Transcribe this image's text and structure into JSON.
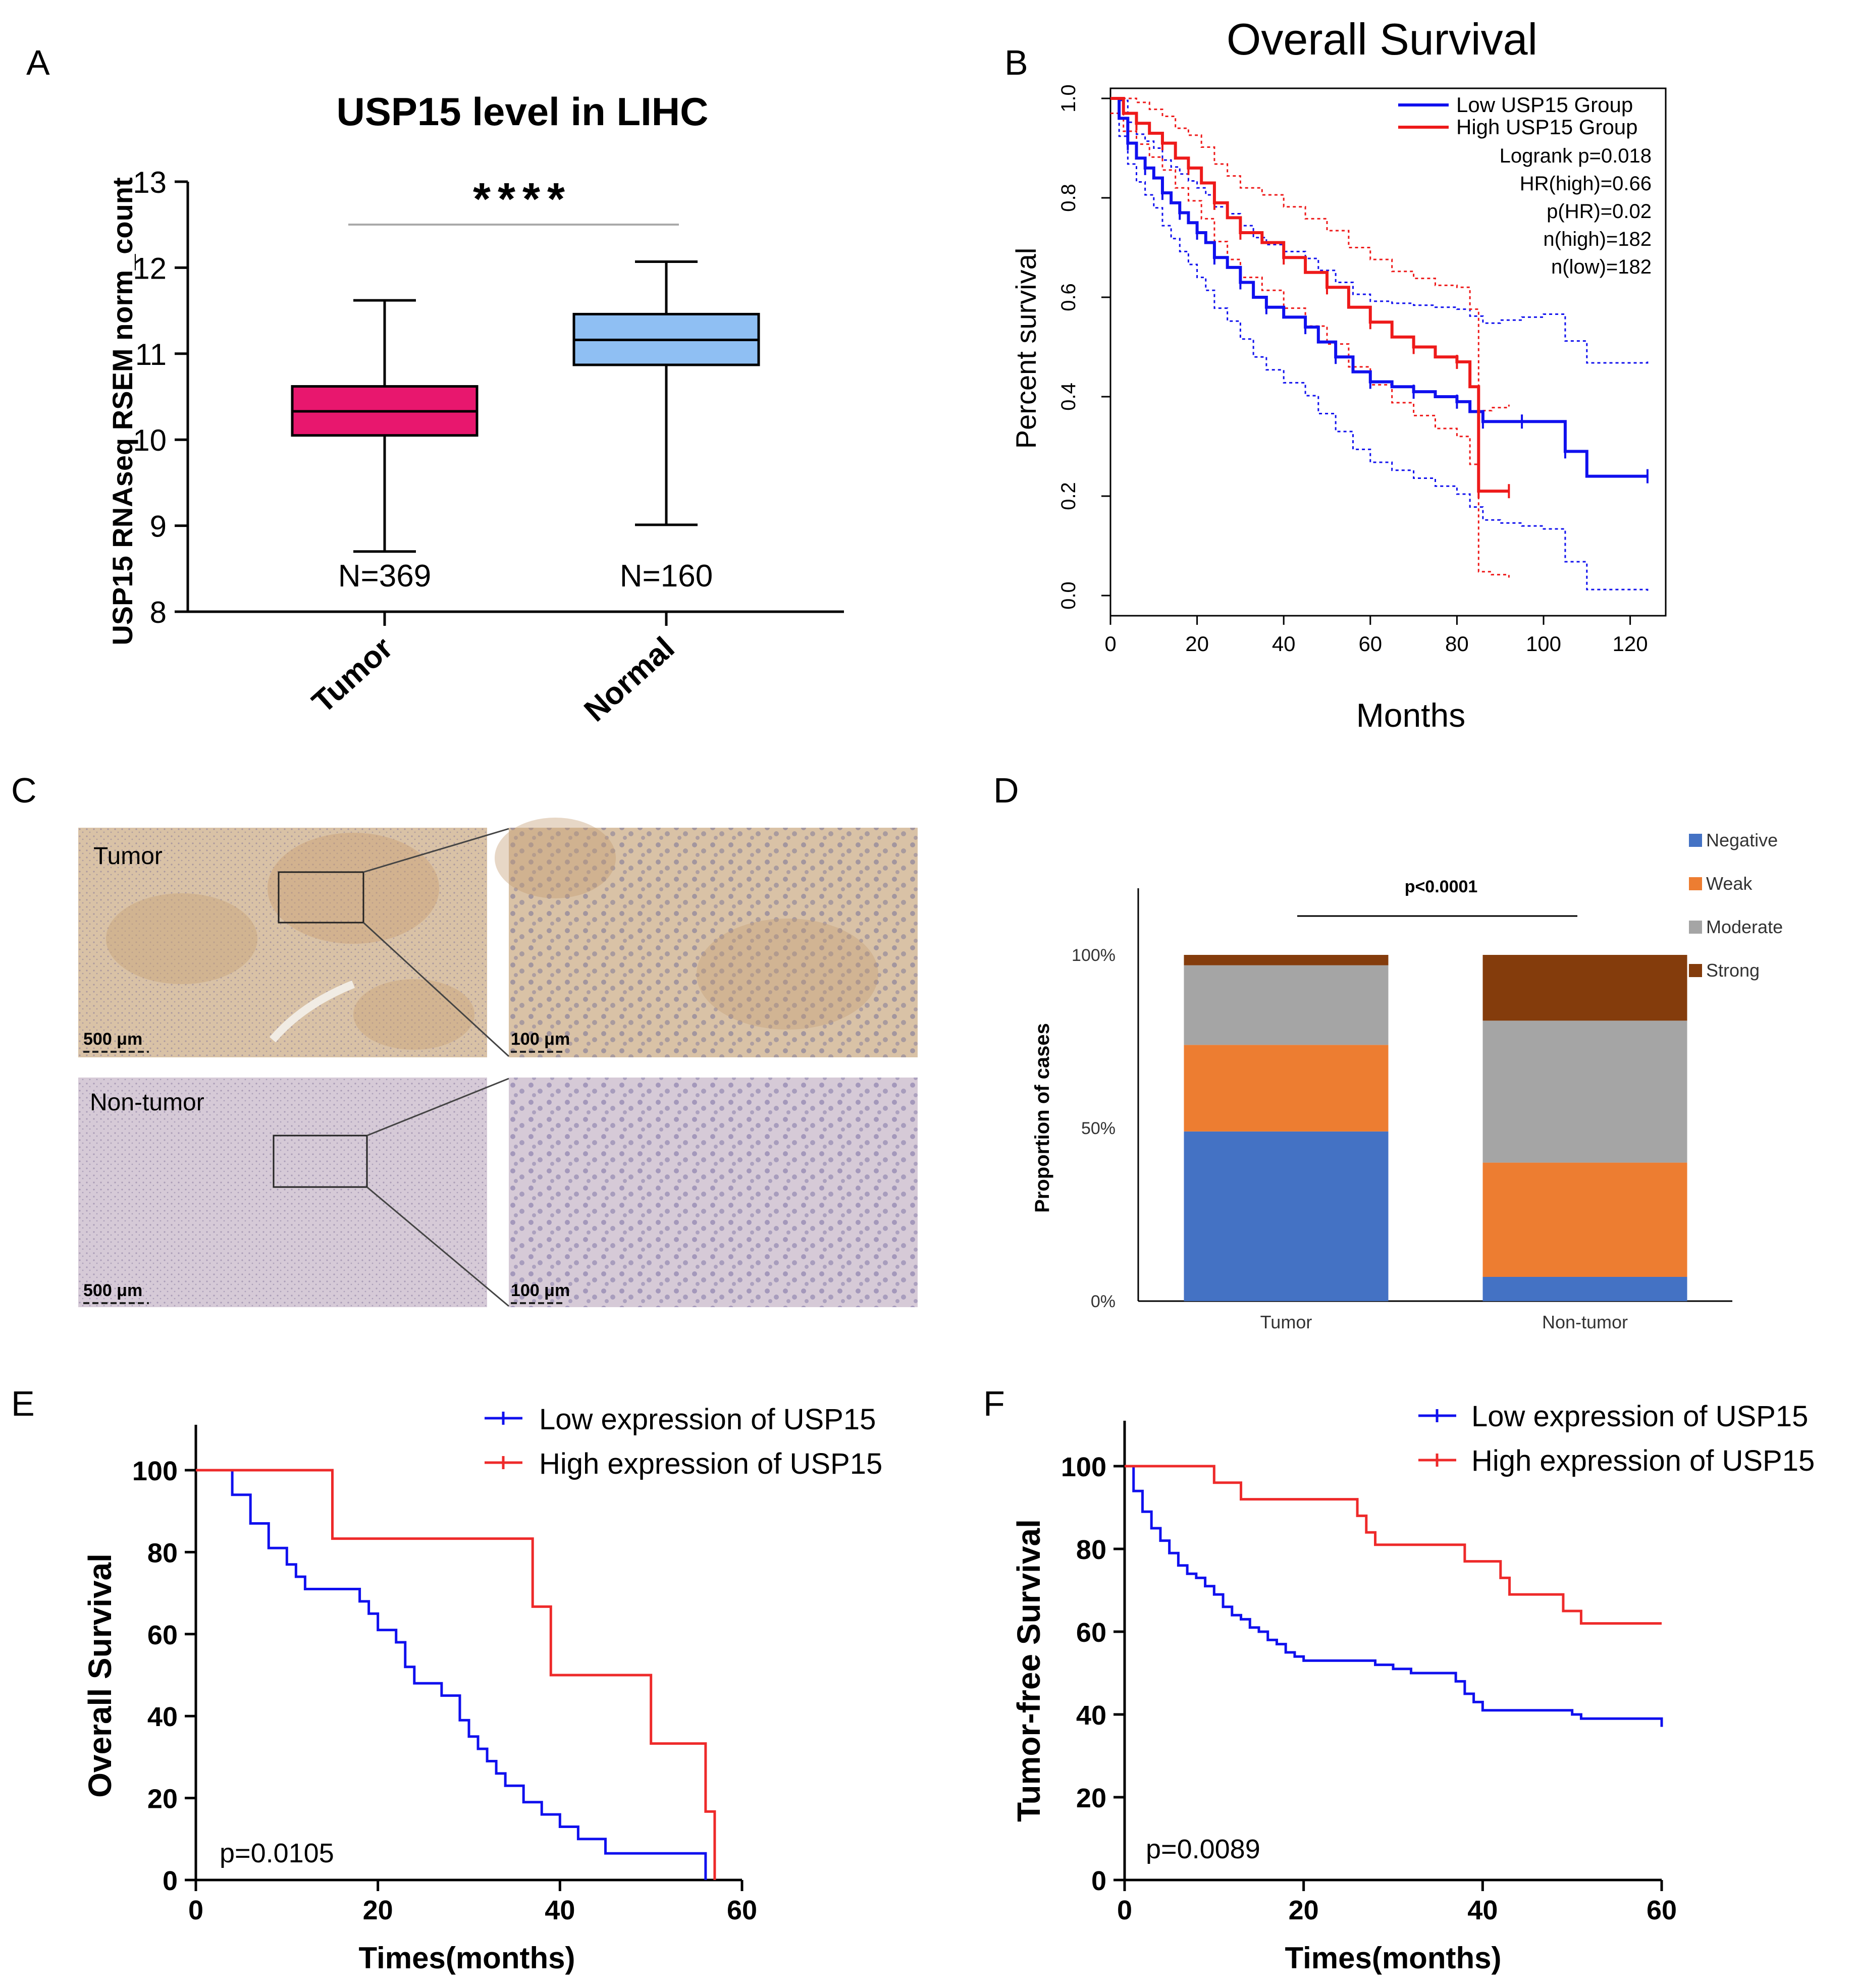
{
  "figure": {
    "panels": {
      "A": "A",
      "B": "B",
      "C": "C",
      "D": "D",
      "E": "E",
      "F": "F"
    }
  },
  "chart_data": [
    {
      "panel": "A",
      "type": "box",
      "title": "USP15 level in LIHC",
      "ylabel": "USP15 RNAseq RSEM norm_count",
      "ylim": [
        8,
        13
      ],
      "yticks": [
        "8",
        "9",
        "10",
        "11",
        "12",
        "13"
      ],
      "categories": [
        "Tumor",
        "Normal"
      ],
      "boxes": [
        {
          "name": "Tumor",
          "min": 8.7,
          "q1": 10.05,
          "median": 10.33,
          "q3": 10.62,
          "max": 11.62,
          "n_label": "N=369",
          "color": "#e8176e"
        },
        {
          "name": "Normal",
          "min": 9.01,
          "q1": 10.87,
          "median": 11.16,
          "q3": 11.46,
          "max": 12.07,
          "n_label": "N=160",
          "color": "#8fbff3"
        }
      ],
      "significance": "****"
    },
    {
      "panel": "B",
      "type": "line",
      "title": "Overall Survival",
      "xlabel": "Months",
      "ylabel": "Percent survival",
      "xlim": [
        0,
        125
      ],
      "ylim": [
        0,
        1
      ],
      "xticks": [
        "0",
        "20",
        "40",
        "60",
        "80",
        "100",
        "120"
      ],
      "yticks": [
        "0.0",
        "0.2",
        "0.4",
        "0.6",
        "0.8",
        "1.0"
      ],
      "legend": [
        "Low USP15 Group",
        "High USP15 Group"
      ],
      "stats": [
        "Logrank p=0.018",
        "HR(high)=0.66",
        "p(HR)=0.02",
        "n(high)=182",
        "n(low)=182"
      ],
      "series": [
        {
          "name": "Low USP15 Group",
          "color": "#1010ee",
          "x": [
            0,
            2,
            4,
            6,
            8,
            10,
            12,
            14,
            16,
            18,
            20,
            22,
            24,
            27,
            30,
            33,
            36,
            40,
            45,
            48,
            52,
            56,
            60,
            65,
            70,
            75,
            80,
            83,
            86,
            90,
            95,
            100,
            105,
            110,
            124
          ],
          "y": [
            1.0,
            0.96,
            0.91,
            0.88,
            0.86,
            0.84,
            0.81,
            0.79,
            0.77,
            0.75,
            0.73,
            0.71,
            0.68,
            0.66,
            0.63,
            0.6,
            0.58,
            0.56,
            0.54,
            0.51,
            0.48,
            0.45,
            0.43,
            0.42,
            0.41,
            0.4,
            0.39,
            0.37,
            0.35,
            0.35,
            0.35,
            0.35,
            0.29,
            0.24,
            0.24
          ]
        },
        {
          "name": "High USP15 Group",
          "color": "#ee1a1a",
          "x": [
            0,
            3,
            6,
            9,
            12,
            15,
            18,
            21,
            24,
            27,
            30,
            35,
            40,
            45,
            50,
            55,
            60,
            65,
            70,
            75,
            80,
            83,
            85,
            88,
            92
          ],
          "y": [
            1.0,
            0.97,
            0.95,
            0.93,
            0.91,
            0.88,
            0.86,
            0.83,
            0.79,
            0.76,
            0.73,
            0.71,
            0.68,
            0.65,
            0.62,
            0.58,
            0.55,
            0.52,
            0.5,
            0.48,
            0.47,
            0.42,
            0.21,
            0.21,
            0.21
          ]
        }
      ]
    },
    {
      "panel": "D",
      "type": "bar",
      "stacked": true,
      "ylabel": "Proportion of cases",
      "yticks": [
        "0%",
        "50%",
        "100%"
      ],
      "categories": [
        "Tumor",
        "Non-tumor"
      ],
      "series": [
        {
          "name": "Negative",
          "color": "#4472c4",
          "values": [
            49,
            7
          ]
        },
        {
          "name": "Weak",
          "color": "#ed7d31",
          "values": [
            25,
            33
          ]
        },
        {
          "name": "Moderate",
          "color": "#a5a5a5",
          "values": [
            23,
            41
          ]
        },
        {
          "name": "Strong",
          "color": "#843c0c",
          "values": [
            3,
            19
          ]
        }
      ],
      "significance": "p<0.0001"
    },
    {
      "panel": "E",
      "type": "line",
      "xlabel": "Times(months)",
      "ylabel": "Overall Survival",
      "xlim": [
        0,
        60
      ],
      "ylim": [
        0,
        100
      ],
      "xticks": [
        "0",
        "20",
        "40",
        "60"
      ],
      "yticks": [
        "0",
        "20",
        "40",
        "60",
        "80",
        "100"
      ],
      "legend": [
        "Low expression of USP15",
        "High expression of USP15"
      ],
      "pvalue": "p=0.0105",
      "series": [
        {
          "name": "Low expression of USP15",
          "color": "#1010ee",
          "x": [
            0,
            4,
            6,
            8,
            10,
            11,
            12,
            16,
            18,
            19,
            20,
            22,
            23,
            24,
            27,
            29,
            30,
            31,
            32,
            33,
            34,
            36,
            38,
            40,
            42,
            45,
            55,
            56
          ],
          "y": [
            100,
            94,
            87,
            81,
            77,
            74,
            71,
            71,
            68,
            65,
            61,
            58,
            52,
            48,
            45,
            39,
            35,
            32,
            29,
            26,
            23,
            19,
            16,
            13,
            10,
            6.5,
            6.5,
            0
          ]
        },
        {
          "name": "High expression of USP15",
          "color": "#ee2a2a",
          "x": [
            0,
            15,
            37,
            39,
            50,
            56,
            57
          ],
          "y": [
            100,
            83.3,
            66.7,
            50,
            33.3,
            16.7,
            0
          ]
        }
      ]
    },
    {
      "panel": "F",
      "type": "line",
      "xlabel": "Times(months)",
      "ylabel": "Tumor-free Survival",
      "xlim": [
        0,
        60
      ],
      "ylim": [
        0,
        100
      ],
      "xticks": [
        "0",
        "20",
        "40",
        "60"
      ],
      "yticks": [
        "0",
        "20",
        "40",
        "60",
        "80",
        "100"
      ],
      "legend": [
        "Low expression of USP15",
        "High expression of USP15"
      ],
      "pvalue": "p=0.0089",
      "series": [
        {
          "name": "Low expression of USP15",
          "color": "#1010ee",
          "x": [
            0,
            1,
            2,
            3,
            4,
            5,
            6,
            7,
            8,
            9,
            10,
            11,
            12,
            13,
            14,
            15,
            16,
            17,
            18,
            19,
            20,
            22,
            25,
            28,
            30,
            32,
            34,
            37,
            38,
            39,
            40,
            45,
            50,
            51,
            60
          ],
          "y": [
            100,
            94,
            89,
            85,
            82,
            79,
            76,
            74,
            73,
            71,
            69,
            66,
            64,
            63,
            61,
            60,
            58,
            57,
            55,
            54,
            53,
            53,
            53,
            52,
            51,
            50,
            50,
            48,
            45,
            43,
            41,
            41,
            40,
            39,
            37
          ]
        },
        {
          "name": "High expression of USP15",
          "color": "#ee2a2a",
          "x": [
            0,
            10,
            13,
            25,
            26,
            27,
            28,
            33,
            34,
            38,
            41,
            42,
            43,
            47,
            49,
            51,
            60
          ],
          "y": [
            100,
            96,
            92,
            92,
            88,
            84,
            81,
            81,
            81,
            77,
            77,
            73,
            69,
            69,
            65,
            62,
            62
          ]
        }
      ]
    }
  ],
  "panel_c": {
    "labels": {
      "tumor": "Tumor",
      "non_tumor": "Non-tumor"
    },
    "scale_bars": {
      "low_mag": "500 μm",
      "high_mag": "100 μm"
    }
  }
}
